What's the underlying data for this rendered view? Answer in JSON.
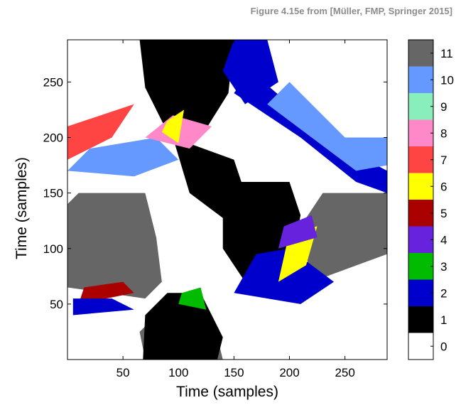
{
  "caption": "Figure 4.15e from [Müller, FMP, Springer 2015]",
  "chart_data": {
    "type": "heatmap",
    "xlabel": "Time (samples)",
    "ylabel": "Time (samples)",
    "xlim": [
      0,
      288
    ],
    "ylim": [
      0,
      288
    ],
    "x_ticks": [
      50,
      100,
      150,
      200,
      250
    ],
    "y_ticks": [
      50,
      100,
      150,
      200,
      250
    ],
    "grid": false,
    "colorbar": {
      "labels": [
        "0",
        "1",
        "2",
        "3",
        "4",
        "5",
        "6",
        "7",
        "8",
        "9",
        "10",
        "11"
      ],
      "colors": [
        "#ffffff",
        "#000000",
        "#0000cc",
        "#00bb00",
        "#6622dd",
        "#aa0000",
        "#ffff00",
        "#ff4444",
        "#ff88c8",
        "#88eebb",
        "#6699ff",
        "#666666"
      ]
    },
    "regions": [
      {
        "desc": "main diagonal (white)",
        "value": 0,
        "poly": [
          [
            0,
            1
          ],
          [
            0,
            285
          ],
          [
            70,
            288
          ],
          [
            80,
            230
          ],
          [
            110,
            210
          ],
          [
            140,
            195
          ],
          [
            160,
            150
          ],
          [
            130,
            120
          ],
          [
            100,
            95
          ],
          [
            75,
            60
          ],
          [
            40,
            20
          ],
          [
            5,
            0
          ]
        ]
      },
      {
        "desc": "gray block centre-left",
        "value": 11,
        "poly": [
          [
            0,
            65
          ],
          [
            70,
            55
          ],
          [
            85,
            70
          ],
          [
            80,
            110
          ],
          [
            70,
            150
          ],
          [
            10,
            150
          ],
          [
            0,
            140
          ]
        ]
      },
      {
        "desc": "gray block centre-right",
        "value": 11,
        "poly": [
          [
            220,
            70
          ],
          [
            288,
            95
          ],
          [
            288,
            150
          ],
          [
            230,
            150
          ],
          [
            210,
            120
          ]
        ]
      },
      {
        "desc": "gray block bottom",
        "value": 11,
        "poly": [
          [
            70,
            0
          ],
          [
            140,
            0
          ],
          [
            130,
            40
          ],
          [
            85,
            45
          ],
          [
            65,
            25
          ]
        ]
      },
      {
        "desc": "black block bottom",
        "value": 1,
        "poly": [
          [
            68,
            0
          ],
          [
            135,
            0
          ],
          [
            140,
            20
          ],
          [
            120,
            60
          ],
          [
            90,
            60
          ],
          [
            70,
            40
          ]
        ]
      },
      {
        "desc": "black block top",
        "value": 1,
        "poly": [
          [
            65,
            288
          ],
          [
            150,
            288
          ],
          [
            145,
            240
          ],
          [
            120,
            200
          ],
          [
            90,
            205
          ],
          [
            70,
            245
          ]
        ]
      },
      {
        "desc": "black block centre-left",
        "value": 1,
        "poly": [
          [
            95,
            200
          ],
          [
            150,
            180
          ],
          [
            160,
            150
          ],
          [
            150,
            120
          ],
          [
            110,
            150
          ]
        ]
      },
      {
        "desc": "black block centre-right",
        "value": 1,
        "poly": [
          [
            140,
            160
          ],
          [
            200,
            160
          ],
          [
            210,
            130
          ],
          [
            200,
            80
          ],
          [
            160,
            70
          ],
          [
            140,
            100
          ]
        ]
      },
      {
        "desc": "blue stripe upper-right",
        "value": 2,
        "poly": [
          [
            150,
            240
          ],
          [
            210,
            200
          ],
          [
            260,
            160
          ],
          [
            288,
            150
          ],
          [
            288,
            170
          ],
          [
            250,
            190
          ],
          [
            200,
            230
          ],
          [
            165,
            260
          ]
        ]
      },
      {
        "desc": "blue stripe top",
        "value": 2,
        "poly": [
          [
            150,
            288
          ],
          [
            180,
            288
          ],
          [
            190,
            250
          ],
          [
            160,
            230
          ],
          [
            140,
            260
          ]
        ]
      },
      {
        "desc": "blue patches lower-right",
        "value": 2,
        "poly": [
          [
            150,
            60
          ],
          [
            210,
            50
          ],
          [
            240,
            70
          ],
          [
            200,
            100
          ],
          [
            170,
            95
          ]
        ]
      },
      {
        "desc": "light blue stripe",
        "value": 10,
        "poly": [
          [
            180,
            230
          ],
          [
            260,
            170
          ],
          [
            288,
            175
          ],
          [
            288,
            200
          ],
          [
            250,
            200
          ],
          [
            200,
            250
          ]
        ]
      },
      {
        "desc": "light blue left",
        "value": 10,
        "poly": [
          [
            0,
            170
          ],
          [
            60,
            165
          ],
          [
            100,
            180
          ],
          [
            80,
            200
          ],
          [
            20,
            190
          ]
        ]
      },
      {
        "desc": "red left top",
        "value": 7,
        "poly": [
          [
            0,
            180
          ],
          [
            40,
            200
          ],
          [
            60,
            230
          ],
          [
            30,
            220
          ],
          [
            0,
            210
          ]
        ]
      },
      {
        "desc": "pink patches",
        "value": 8,
        "poly": [
          [
            70,
            200
          ],
          [
            110,
            190
          ],
          [
            130,
            210
          ],
          [
            95,
            220
          ]
        ]
      },
      {
        "desc": "yellow top",
        "value": 6,
        "poly": [
          [
            90,
            215
          ],
          [
            105,
            225
          ],
          [
            100,
            195
          ],
          [
            85,
            205
          ]
        ]
      },
      {
        "desc": "yellow bottom right",
        "value": 6,
        "poly": [
          [
            190,
            70
          ],
          [
            215,
            85
          ],
          [
            225,
            120
          ],
          [
            200,
            115
          ]
        ]
      },
      {
        "desc": "purple",
        "value": 4,
        "poly": [
          [
            190,
            100
          ],
          [
            225,
            110
          ],
          [
            220,
            130
          ],
          [
            195,
            120
          ]
        ]
      },
      {
        "desc": "green bottom",
        "value": 3,
        "poly": [
          [
            100,
            50
          ],
          [
            125,
            45
          ],
          [
            120,
            65
          ],
          [
            103,
            60
          ]
        ]
      },
      {
        "desc": "red lower-left",
        "value": 5,
        "poly": [
          [
            10,
            50
          ],
          [
            60,
            60
          ],
          [
            50,
            70
          ],
          [
            15,
            65
          ]
        ]
      },
      {
        "desc": "blue lower-left",
        "value": 2,
        "poly": [
          [
            5,
            40
          ],
          [
            60,
            45
          ],
          [
            40,
            55
          ],
          [
            5,
            55
          ]
        ]
      }
    ]
  }
}
